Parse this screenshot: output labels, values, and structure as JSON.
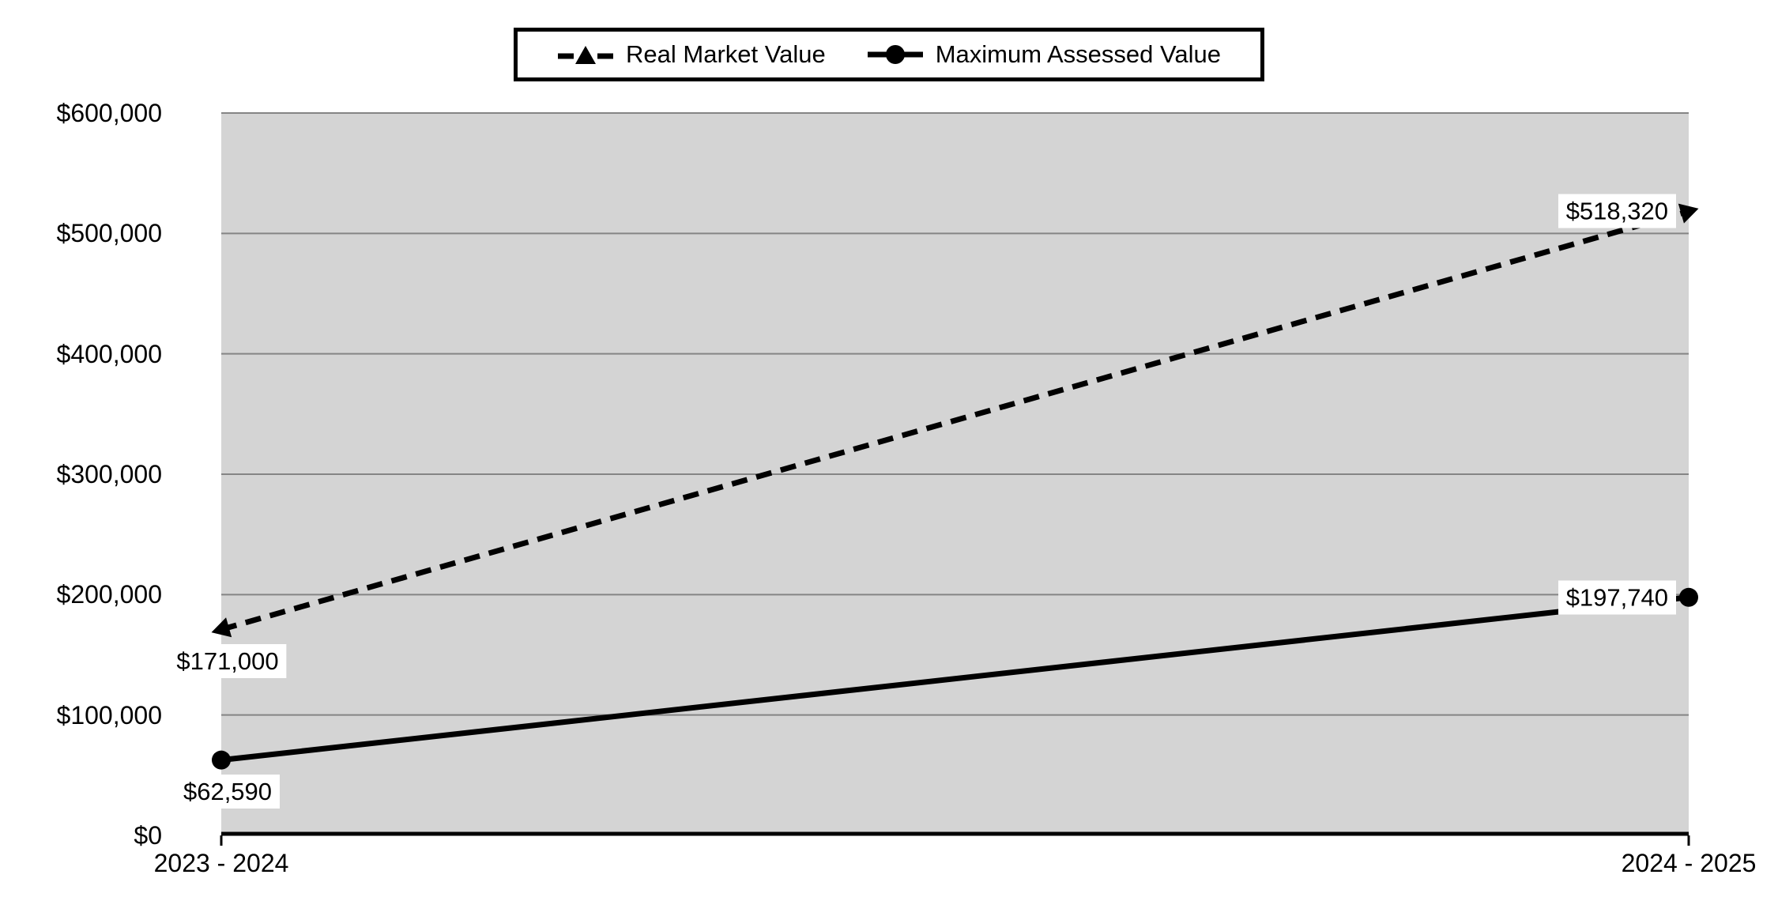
{
  "chart_data": {
    "type": "line",
    "categories": [
      "2023 - 2024",
      "2024 - 2025"
    ],
    "series": [
      {
        "name": "Real Market Value",
        "values": [
          171000,
          518320
        ],
        "labels": [
          "$171,000",
          "$518,320"
        ],
        "style": "dashed",
        "marker": "triangle",
        "label_placements": [
          "below",
          "left"
        ]
      },
      {
        "name": "Maximum Assessed Value",
        "values": [
          62590,
          197740
        ],
        "labels": [
          "$62,590",
          "$197,740"
        ],
        "style": "solid",
        "marker": "circle",
        "label_placements": [
          "below",
          "left"
        ]
      }
    ],
    "title": "",
    "xlabel": "",
    "ylabel": "",
    "ylim": [
      0,
      600000
    ],
    "ytick_step": 100000,
    "ytick_labels": [
      "$0",
      "$100,000",
      "$200,000",
      "$300,000",
      "$400,000",
      "$500,000",
      "$600,000"
    ],
    "grid": true,
    "legend_position": "top-center",
    "colors": {
      "line": "#000000",
      "plot_background": "#d4d4d4",
      "gridline": "#858585",
      "axis": "#000000",
      "label_background": "#ffffff",
      "text": "#000000"
    }
  }
}
